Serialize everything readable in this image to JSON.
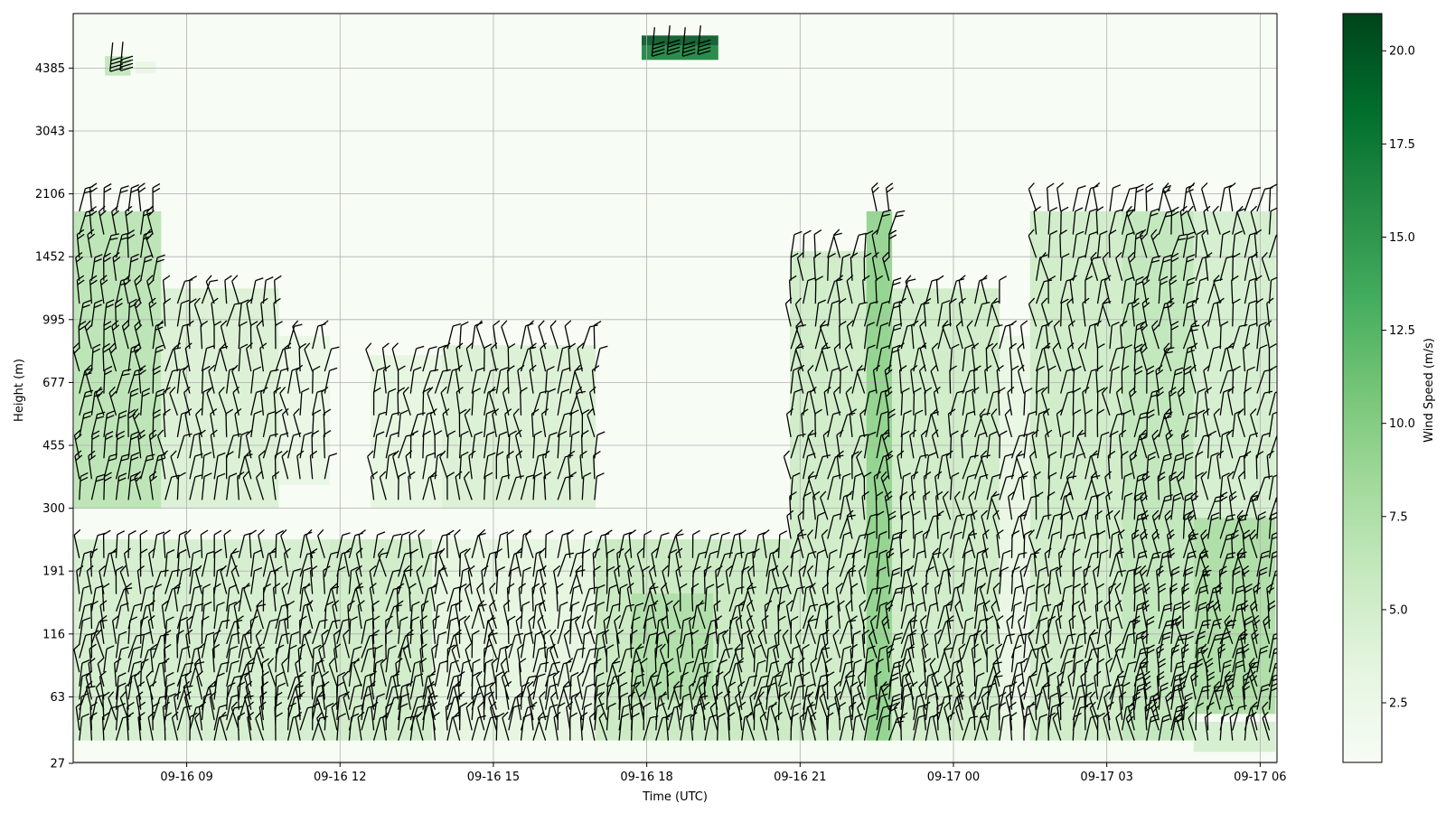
{
  "chart_data": {
    "type": "heatmap",
    "xlabel": "Time (UTC)",
    "ylabel": "Height (m)",
    "x_ticks": [
      "09-16 09",
      "09-16 12",
      "09-16 15",
      "09-16 18",
      "09-16 21",
      "09-17 00",
      "09-17 03",
      "09-17 06"
    ],
    "x_range": [
      "09-16 06:47",
      "09-17 06:20"
    ],
    "y_ticks": [
      27,
      63,
      116,
      191,
      300,
      455,
      677,
      995,
      1452,
      2106,
      3043,
      4385
    ],
    "grid": true,
    "colorbar": {
      "label": "Wind Speed (m/s)",
      "range": [
        0.9,
        21.0
      ],
      "ticks": [
        "2.5",
        "5.0",
        "7.5",
        "10.0",
        "12.5",
        "15.0",
        "17.5",
        "20.0"
      ],
      "colormap": "Greens",
      "colors": [
        "#f7fcf5",
        "#e5f5e0",
        "#c7e9c0",
        "#a1d99b",
        "#74c476",
        "#41ab5d",
        "#238b45",
        "#006d2c",
        "#00441b"
      ]
    },
    "wind_speed_regions": [
      {
        "t_start": 6.8,
        "t_end": 8.5,
        "h_low": 300,
        "h_high": 1900,
        "speed": 7.0
      },
      {
        "t_start": 8.5,
        "t_end": 10.8,
        "h_low": 300,
        "h_high": 1200,
        "speed": 4.5
      },
      {
        "t_start": 10.8,
        "t_end": 11.8,
        "h_low": 350,
        "h_high": 900,
        "speed": 3.0
      },
      {
        "t_start": 6.8,
        "t_end": 11.8,
        "h_low": 35,
        "h_high": 240,
        "speed": 5.0
      },
      {
        "t_start": 7.4,
        "t_end": 7.9,
        "h_low": 4200,
        "h_high": 4700,
        "speed": 6.5
      },
      {
        "t_start": 8.0,
        "t_end": 8.4,
        "h_low": 4250,
        "h_high": 4550,
        "speed": 3.0
      },
      {
        "t_start": 11.8,
        "t_end": 13.8,
        "h_low": 35,
        "h_high": 240,
        "speed": 5.5
      },
      {
        "t_start": 12.6,
        "t_end": 14.0,
        "h_low": 300,
        "h_high": 800,
        "speed": 3.5
      },
      {
        "t_start": 14.0,
        "t_end": 17.0,
        "h_low": 300,
        "h_high": 850,
        "speed": 4.5
      },
      {
        "t_start": 13.8,
        "t_end": 17.0,
        "h_low": 35,
        "h_high": 240,
        "speed": 3.5
      },
      {
        "t_start": 17.0,
        "t_end": 20.8,
        "h_low": 35,
        "h_high": 240,
        "speed": 6.0
      },
      {
        "t_start": 17.7,
        "t_end": 19.3,
        "h_low": 60,
        "h_high": 160,
        "speed": 7.5
      },
      {
        "t_start": 17.9,
        "t_end": 19.4,
        "h_low": 4600,
        "h_high": 5000,
        "speed": 17.0
      },
      {
        "t_start": 17.9,
        "t_end": 19.4,
        "h_low": 5000,
        "h_high": 5300,
        "speed": 20.0
      },
      {
        "t_start": 20.8,
        "t_end": 22.7,
        "h_low": 35,
        "h_high": 1500,
        "speed": 5.5
      },
      {
        "t_start": 22.3,
        "t_end": 22.8,
        "h_low": 35,
        "h_high": 1900,
        "speed": 9.5
      },
      {
        "t_start": 22.8,
        "t_end": 24.9,
        "h_low": 35,
        "h_high": 1200,
        "speed": 5.5
      },
      {
        "t_start": 24.9,
        "t_end": 25.5,
        "h_low": 35,
        "h_high": 900,
        "speed": 3.0
      },
      {
        "t_start": 25.5,
        "t_end": 27.3,
        "h_low": 35,
        "h_high": 1900,
        "speed": 5.5
      },
      {
        "t_start": 27.3,
        "t_end": 28.7,
        "h_low": 35,
        "h_high": 1900,
        "speed": 6.5
      },
      {
        "t_start": 28.7,
        "t_end": 30.3,
        "h_low": 280,
        "h_high": 1900,
        "speed": 5.0
      },
      {
        "t_start": 28.7,
        "t_end": 30.3,
        "h_low": 50,
        "h_high": 280,
        "speed": 8.0
      },
      {
        "t_start": 28.7,
        "t_end": 30.3,
        "h_low": 30,
        "h_high": 45,
        "speed": 5.0
      }
    ],
    "wind_barbs_note": "black wind barbs at regular time/height intervals"
  }
}
